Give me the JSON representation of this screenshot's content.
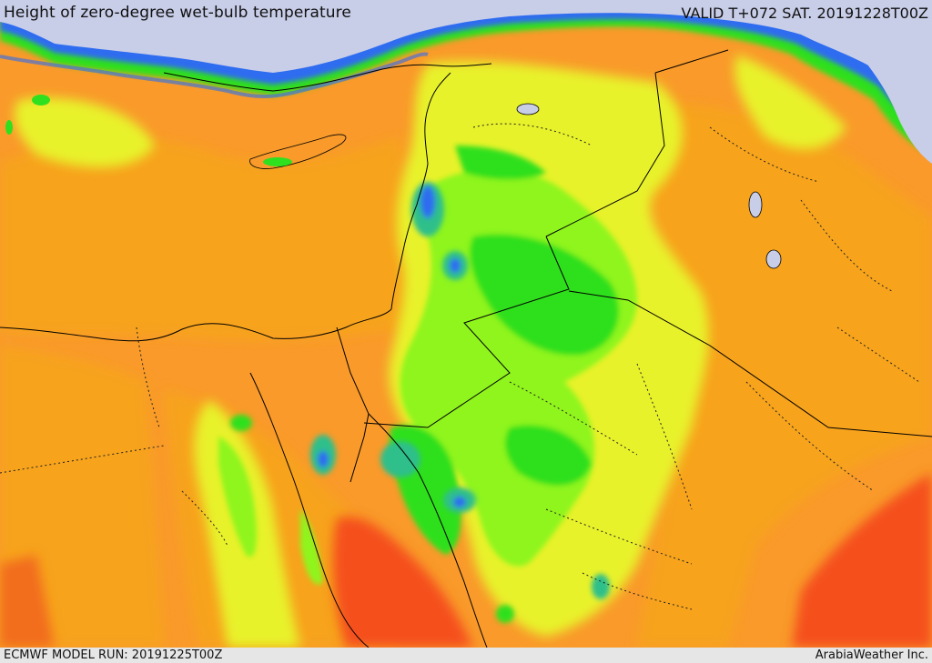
{
  "header": {
    "title": "Height of zero-degree wet-bulb temperature",
    "valid_time": "VALID T+072 SAT. 20191228T00Z"
  },
  "footer": {
    "model_run": "ECMWF MODEL RUN: 20191225T00Z",
    "credit": "ArabiaWeather Inc."
  },
  "colors": {
    "sea": "#c8cde8",
    "deep_orange": "#f26d1f",
    "red_orange": "#f5501a",
    "orange": "#f7a31a",
    "light_orange": "#f99a2a",
    "yellow": "#e8f22a",
    "yellow_green": "#c6f52e",
    "lime": "#8ff51a",
    "green": "#2fe01e",
    "teal": "#2fbf8a",
    "blue": "#2f6cf0",
    "light_blue": "#8fb0f5",
    "dark_line": "#000000"
  }
}
